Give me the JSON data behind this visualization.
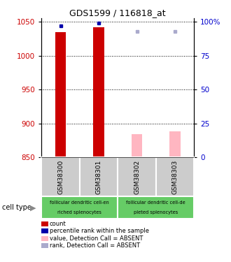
{
  "title": "GDS1599 / 116818_at",
  "samples": [
    "GSM38300",
    "GSM38301",
    "GSM38302",
    "GSM38303"
  ],
  "bar_values_red": [
    1035,
    1042,
    null,
    null
  ],
  "bar_values_pink": [
    null,
    null,
    884,
    888
  ],
  "dot_blue": [
    1044,
    1048,
    null,
    null
  ],
  "dot_lavender": [
    null,
    null,
    1036,
    1036
  ],
  "ylim": [
    850,
    1055
  ],
  "y_left_ticks": [
    850,
    900,
    950,
    1000,
    1050
  ],
  "y_right_labels": [
    "0",
    "25",
    "50",
    "75",
    "100%"
  ],
  "dotted_lines": [
    900,
    950,
    1000,
    1050
  ],
  "bg_color": "#FFFFFF",
  "bar_color_red": "#CC0000",
  "bar_color_pink": "#FFB6C1",
  "dot_color_blue": "#0000AA",
  "dot_color_lavender": "#AAAACC",
  "label_color_left": "#CC0000",
  "label_color_right": "#0000CC",
  "xlabel_area_bg": "#CCCCCC",
  "cell_color": "#66CC66",
  "cell_type_label": "cell type",
  "legend_items": [
    {
      "color": "#CC0000",
      "label": "count"
    },
    {
      "color": "#0000AA",
      "label": "percentile rank within the sample"
    },
    {
      "color": "#FFB6C1",
      "label": "value, Detection Call = ABSENT"
    },
    {
      "color": "#AAAACC",
      "label": "rank, Detection Call = ABSENT"
    }
  ]
}
